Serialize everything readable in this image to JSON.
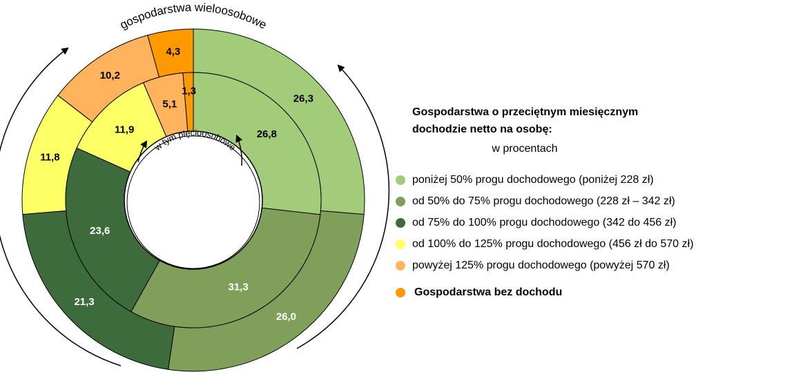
{
  "chart_data": {
    "type": "donut",
    "outer_label": "gospodarstwa wieloosobowe",
    "inner_label": "w tym pięcioosobowe",
    "legend_title": [
      "Gospodarstwa o przeciętnym miesięcznym",
      "dochodzie netto na osobę:"
    ],
    "legend_subtitle": "w procentach",
    "categories": [
      "poniżej 50% progu dochodowego (poniżej 228 zł)",
      "od 50% do 75% progu dochodowego (228 zł – 342 zł)",
      "od 75% do 100% progu dochodowego (342 do 456 zł)",
      "od 100% do 125% progu dochodowego (456 zł do 570 zł)",
      "powyżej 125% progu dochodowego (powyżej 570 zł)",
      "Gospodarstwa bez dochodu"
    ],
    "colors": [
      "#a3cc7a",
      "#7f9f5a",
      "#3e6b3c",
      "#ffff66",
      "#ffb35c",
      "#ff9900"
    ],
    "series": [
      {
        "name": "gospodarstwa wieloosobowe",
        "values": [
          26.3,
          26.0,
          21.3,
          11.8,
          10.2,
          4.3
        ],
        "value_labels": [
          "26,3",
          "26,0",
          "21,3",
          "11,8",
          "10,2",
          "4,3"
        ]
      },
      {
        "name": "w tym pięcioosobowe",
        "values": [
          26.8,
          31.3,
          23.6,
          11.9,
          5.1,
          1.3
        ],
        "value_labels": [
          "26,8",
          "31,3",
          "23,6",
          "11,9",
          "5,1",
          "1,3"
        ]
      }
    ]
  }
}
